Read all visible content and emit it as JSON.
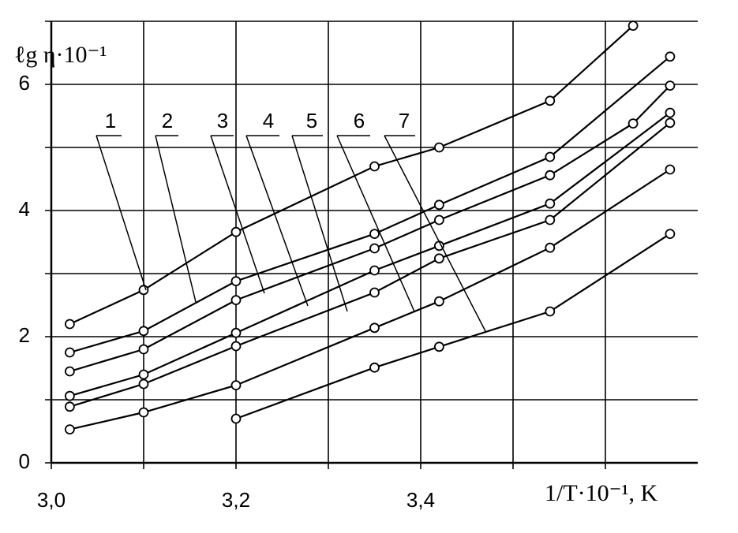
{
  "chart_data": {
    "type": "line",
    "y_label": "ℓg η·10⁻¹",
    "x_label": "1/T·10⁻¹, K",
    "xlim": [
      3.0,
      3.7
    ],
    "xticks": [
      {
        "value": 3.0,
        "label": "3,0"
      },
      {
        "value": 3.2,
        "label": "3,2"
      },
      {
        "value": 3.4,
        "label": "3,4"
      }
    ],
    "minor_xticks": [
      3.1,
      3.3,
      3.5,
      3.6
    ],
    "ylim": [
      0,
      7
    ],
    "yticks": [
      0,
      2,
      4,
      6
    ],
    "minor_yticks": [
      1,
      3,
      5,
      7
    ],
    "grid": true,
    "series": [
      {
        "name": "1",
        "color": "#000000",
        "x": [
          3.02,
          3.1,
          3.2,
          3.35,
          3.42,
          3.54,
          3.63
        ],
        "values": [
          2.2,
          2.74,
          3.66,
          4.7,
          5.0,
          5.74,
          6.93
        ]
      },
      {
        "name": "2",
        "color": "#000000",
        "x": [
          3.02,
          3.1,
          3.2,
          3.35,
          3.42,
          3.54,
          3.67
        ],
        "values": [
          1.75,
          2.09,
          2.88,
          3.63,
          4.09,
          4.85,
          6.44
        ]
      },
      {
        "name": "3",
        "color": "#000000",
        "x": [
          3.02,
          3.1,
          3.2,
          3.35,
          3.42,
          3.54,
          3.63,
          3.67
        ],
        "values": [
          1.45,
          1.8,
          2.58,
          3.4,
          3.85,
          4.56,
          5.38,
          5.98
        ]
      },
      {
        "name": "4",
        "color": "#000000",
        "x": [
          3.02,
          3.1,
          3.2,
          3.35,
          3.42,
          3.54,
          3.67
        ],
        "values": [
          1.06,
          1.4,
          2.06,
          3.05,
          3.44,
          4.11,
          5.55
        ]
      },
      {
        "name": "5",
        "color": "#000000",
        "x": [
          3.02,
          3.1,
          3.2,
          3.35,
          3.42,
          3.54,
          3.67
        ],
        "values": [
          0.89,
          1.25,
          1.85,
          2.7,
          3.24,
          3.85,
          5.39
        ]
      },
      {
        "name": "6",
        "color": "#000000",
        "x": [
          3.02,
          3.1,
          3.2,
          3.35,
          3.42,
          3.54,
          3.67
        ],
        "values": [
          0.53,
          0.8,
          1.23,
          2.14,
          2.56,
          3.41,
          4.65
        ]
      },
      {
        "name": "7",
        "color": "#000000",
        "x": [
          3.2,
          3.35,
          3.42,
          3.54,
          3.67
        ],
        "values": [
          0.7,
          1.51,
          1.84,
          2.4,
          3.63
        ]
      }
    ]
  }
}
